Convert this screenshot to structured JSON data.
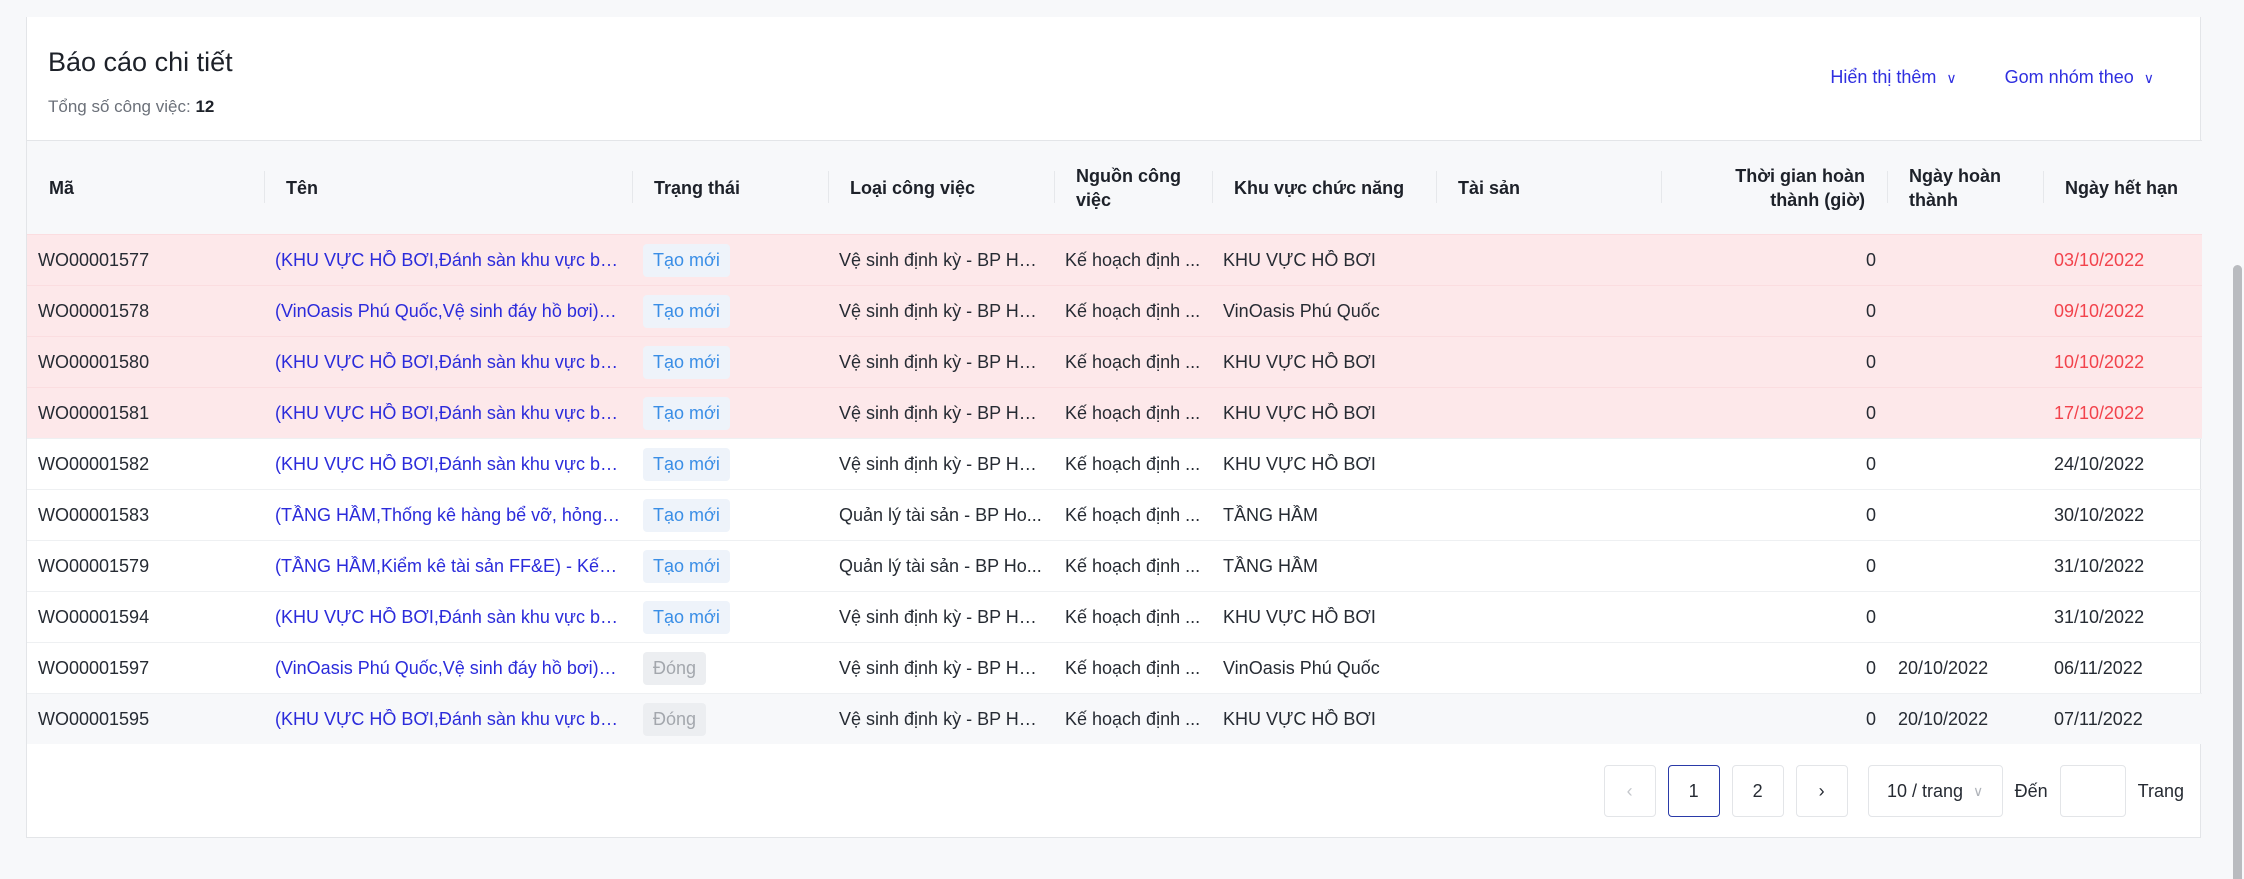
{
  "header": {
    "title": "Báo cáo chi tiết",
    "total_label": "Tổng số công việc:",
    "total_value": "12",
    "show_more": "Hiển thị thêm",
    "group_by": "Gom nhóm theo"
  },
  "columns": [
    "Mã",
    "Tên",
    "Trạng thái",
    "Loại công việc",
    "Nguồn công việc",
    "Khu vực chức năng",
    "Tài sản",
    "Thời gian hoàn thành (giờ)",
    "Ngày hoàn thành",
    "Ngày hết hạn"
  ],
  "rows": [
    {
      "code": "WO00001577",
      "name": "(KHU VỰC HỒ BƠI,Đánh sàn khu vực bể ...",
      "status": "Tạo mới",
      "type": "Vệ sinh định kỳ - BP Ho...",
      "source": "Kế hoạch định ...",
      "area": "KHU VỰC HỒ BƠI",
      "asset": "",
      "hours": "0",
      "done": "",
      "due": "03/10/2022",
      "overdue": true
    },
    {
      "code": "WO00001578",
      "name": "(VinOasis Phú Quốc,Vệ sinh đáy hồ bơi) -...",
      "status": "Tạo mới",
      "type": "Vệ sinh định kỳ - BP Ho...",
      "source": "Kế hoạch định ...",
      "area": "VinOasis Phú Quốc",
      "asset": "",
      "hours": "0",
      "done": "",
      "due": "09/10/2022",
      "overdue": true
    },
    {
      "code": "WO00001580",
      "name": "(KHU VỰC HỒ BƠI,Đánh sàn khu vực bể ...",
      "status": "Tạo mới",
      "type": "Vệ sinh định kỳ - BP Ho...",
      "source": "Kế hoạch định ...",
      "area": "KHU VỰC HỒ BƠI",
      "asset": "",
      "hours": "0",
      "done": "",
      "due": "10/10/2022",
      "overdue": true
    },
    {
      "code": "WO00001581",
      "name": "(KHU VỰC HỒ BƠI,Đánh sàn khu vực bể ...",
      "status": "Tạo mới",
      "type": "Vệ sinh định kỳ - BP Ho...",
      "source": "Kế hoạch định ...",
      "area": "KHU VỰC HỒ BƠI",
      "asset": "",
      "hours": "0",
      "done": "",
      "due": "17/10/2022",
      "overdue": true
    },
    {
      "code": "WO00001582",
      "name": "(KHU VỰC HỒ BƠI,Đánh sàn khu vực bể ...",
      "status": "Tạo mới",
      "type": "Vệ sinh định kỳ - BP Ho...",
      "source": "Kế hoạch định ...",
      "area": "KHU VỰC HỒ BƠI",
      "asset": "",
      "hours": "0",
      "done": "",
      "due": "24/10/2022",
      "overdue": false
    },
    {
      "code": "WO00001583",
      "name": "(TẦNG HẦM,Thống kê hàng bể vỡ, hỏng ...",
      "status": "Tạo mới",
      "type": "Quản lý tài sản - BP Ho...",
      "source": "Kế hoạch định ...",
      "area": "TẦNG HẦM",
      "asset": "",
      "hours": "0",
      "done": "",
      "due": "30/10/2022",
      "overdue": false
    },
    {
      "code": "WO00001579",
      "name": "(TẦNG HẦM,Kiểm kê tài sản FF&E) - Kế h...",
      "status": "Tạo mới",
      "type": "Quản lý tài sản - BP Ho...",
      "source": "Kế hoạch định ...",
      "area": "TẦNG HẦM",
      "asset": "",
      "hours": "0",
      "done": "",
      "due": "31/10/2022",
      "overdue": false
    },
    {
      "code": "WO00001594",
      "name": "(KHU VỰC HỒ BƠI,Đánh sàn khu vực bể ...",
      "status": "Tạo mới",
      "type": "Vệ sinh định kỳ - BP Ho...",
      "source": "Kế hoạch định ...",
      "area": "KHU VỰC HỒ BƠI",
      "asset": "",
      "hours": "0",
      "done": "",
      "due": "31/10/2022",
      "overdue": false
    },
    {
      "code": "WO00001597",
      "name": "(VinOasis Phú Quốc,Vệ sinh đáy hồ bơi) -...",
      "status": "Đóng",
      "type": "Vệ sinh định kỳ - BP Ho...",
      "source": "Kế hoạch định ...",
      "area": "VinOasis Phú Quốc",
      "asset": "",
      "hours": "0",
      "done": "20/10/2022",
      "due": "06/11/2022",
      "overdue": false
    },
    {
      "code": "WO00001595",
      "name": "(KHU VỰC HỒ BƠI,Đánh sàn khu vực bể ...",
      "status": "Đóng",
      "type": "Vệ sinh định kỳ - BP Ho...",
      "source": "Kế hoạch định ...",
      "area": "KHU VỰC HỒ BƠI",
      "asset": "",
      "hours": "0",
      "done": "20/10/2022",
      "due": "07/11/2022",
      "overdue": false
    }
  ],
  "pagination": {
    "prev": "‹",
    "pages": [
      "1",
      "2"
    ],
    "current": "1",
    "next": "›",
    "page_size": "10 / trang",
    "goto_label": "Đến",
    "goto_value": "",
    "page_label": "Trang"
  },
  "colors": {
    "link": "#2b2bdb",
    "overdue_row": "#fde8ea",
    "overdue_date": "#f2434c",
    "tag_new": "#3a8ee6",
    "tag_closed": "#a3a7ad"
  }
}
